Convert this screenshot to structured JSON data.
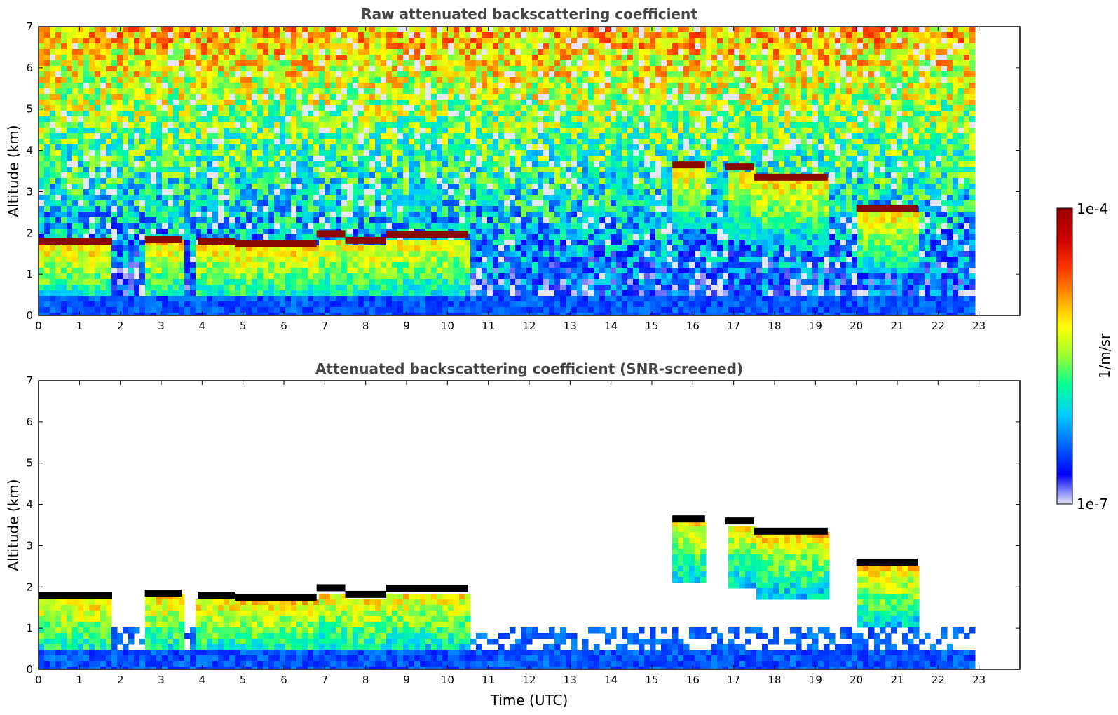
{
  "figure": {
    "colorbar": {
      "label": "1/m/sr",
      "min_label": "1e-7",
      "max_label": "1e-4",
      "scale": "log",
      "range": [
        1e-07,
        0.0001
      ],
      "palette": [
        "#e6e6f2",
        "#0000ff",
        "#0066ff",
        "#00ccff",
        "#00ff99",
        "#99ff33",
        "#ffff00",
        "#ff9900",
        "#ff3300",
        "#cc0000",
        "#990000"
      ]
    },
    "time_axis_label": "Time (UTC)"
  },
  "chart_data": [
    {
      "type": "heatmap",
      "title": "Raw attenuated backscattering coefficient",
      "xlabel": "",
      "ylabel": "Altitude (km)",
      "xlim": [
        0,
        24
      ],
      "ylim": [
        0,
        7
      ],
      "xticks": [
        "0",
        "1",
        "2",
        "3",
        "4",
        "5",
        "6",
        "7",
        "8",
        "9",
        "10",
        "11",
        "12",
        "13",
        "14",
        "15",
        "16",
        "17",
        "18",
        "19",
        "20",
        "21",
        "22",
        "23"
      ],
      "yticks": [
        "0",
        "1",
        "2",
        "3",
        "4",
        "5",
        "6",
        "7"
      ],
      "data_end_time": 22.8,
      "cloud_layers": [
        {
          "t_start": 0.0,
          "t_end": 1.8,
          "altitude": 1.8
        },
        {
          "t_start": 2.6,
          "t_end": 3.5,
          "altitude": 1.85
        },
        {
          "t_start": 3.9,
          "t_end": 4.8,
          "altitude": 1.8
        },
        {
          "t_start": 4.8,
          "t_end": 6.8,
          "altitude": 1.75
        },
        {
          "t_start": 6.8,
          "t_end": 7.5,
          "altitude": 1.98
        },
        {
          "t_start": 7.5,
          "t_end": 8.5,
          "altitude": 1.82
        },
        {
          "t_start": 8.5,
          "t_end": 10.5,
          "altitude": 1.97
        },
        {
          "t_start": 15.5,
          "t_end": 16.3,
          "altitude": 3.65
        },
        {
          "t_start": 16.8,
          "t_end": 17.5,
          "altitude": 3.6
        },
        {
          "t_start": 17.5,
          "t_end": 19.3,
          "altitude": 3.35
        },
        {
          "t_start": 20.0,
          "t_end": 21.5,
          "altitude": 2.6
        }
      ]
    },
    {
      "type": "heatmap",
      "title": "Attenuated backscattering coefficient (SNR-screened)",
      "xlabel": "Time (UTC)",
      "ylabel": "Altitude (km)",
      "xlim": [
        0,
        24
      ],
      "ylim": [
        0,
        7
      ],
      "xticks": [
        "0",
        "1",
        "2",
        "3",
        "4",
        "5",
        "6",
        "7",
        "8",
        "9",
        "10",
        "11",
        "12",
        "13",
        "14",
        "15",
        "16",
        "17",
        "18",
        "19",
        "20",
        "21",
        "22",
        "23"
      ],
      "yticks": [
        "0",
        "1",
        "2",
        "3",
        "4",
        "5",
        "6",
        "7"
      ],
      "data_end_time": 22.8,
      "cloud_layers": [
        {
          "t_start": 0.0,
          "t_end": 1.8,
          "altitude": 1.8
        },
        {
          "t_start": 2.6,
          "t_end": 3.5,
          "altitude": 1.85
        },
        {
          "t_start": 3.9,
          "t_end": 4.8,
          "altitude": 1.8
        },
        {
          "t_start": 4.8,
          "t_end": 6.8,
          "altitude": 1.75
        },
        {
          "t_start": 6.8,
          "t_end": 7.5,
          "altitude": 1.98
        },
        {
          "t_start": 7.5,
          "t_end": 8.5,
          "altitude": 1.82
        },
        {
          "t_start": 8.5,
          "t_end": 10.5,
          "altitude": 1.97
        },
        {
          "t_start": 15.5,
          "t_end": 16.3,
          "altitude": 3.65
        },
        {
          "t_start": 16.8,
          "t_end": 17.5,
          "altitude": 3.6
        },
        {
          "t_start": 17.5,
          "t_end": 19.3,
          "altitude": 3.35
        },
        {
          "t_start": 20.0,
          "t_end": 21.5,
          "altitude": 2.6
        }
      ]
    }
  ]
}
